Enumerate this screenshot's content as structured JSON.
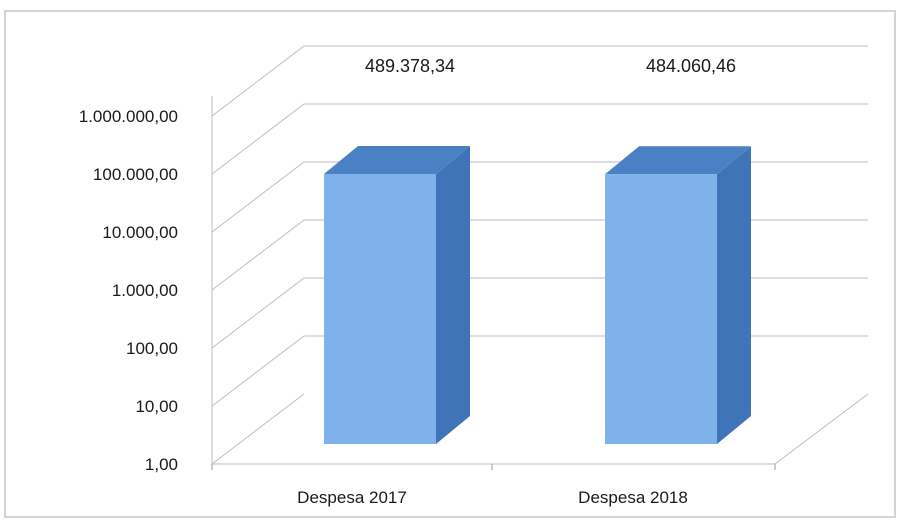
{
  "chart_data": {
    "type": "bar",
    "style": "3d-column",
    "scale": "log",
    "categories": [
      "Despesa 2017",
      "Despesa 2018"
    ],
    "values": [
      489378.34,
      484060.46
    ],
    "data_labels": [
      "489.378,34",
      "484.060,46"
    ],
    "ylim": [
      1,
      1000000
    ],
    "y_ticks": [
      1,
      10,
      100,
      1000,
      10000,
      100000,
      1000000
    ],
    "y_tick_labels": [
      "1,00",
      "10,00",
      "100,00",
      "1.000,00",
      "10.000,00",
      "100.000,00",
      "1.000.000,00"
    ],
    "grid": true,
    "legend": "none",
    "colors": {
      "bar_front": "#7fb2ea",
      "bar_side": "#3f74b8",
      "bar_top": "#4a80c4",
      "grid": "#bdbdbd"
    }
  }
}
